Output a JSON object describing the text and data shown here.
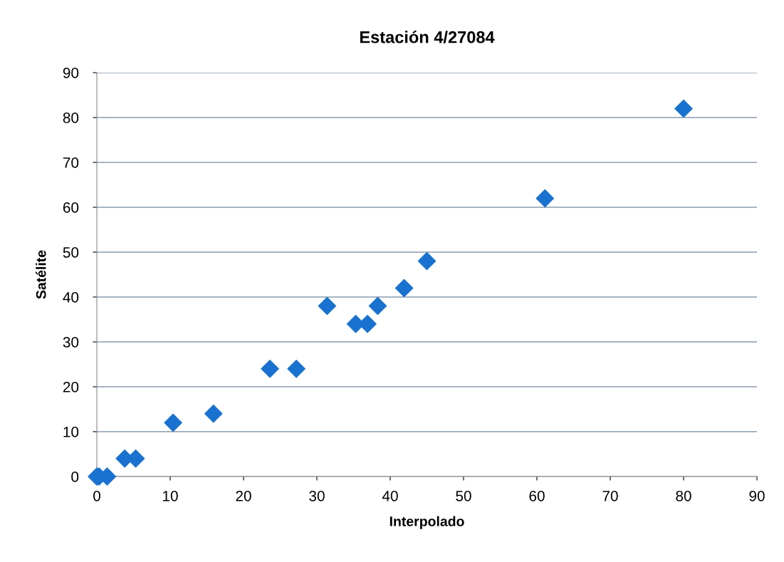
{
  "chart_data": {
    "type": "scatter",
    "title": "Estación 4/27084",
    "xlabel": "Interpolado",
    "ylabel": "Satélite",
    "x": [
      0,
      0.3,
      1.4,
      3.8,
      5.3,
      10.4,
      15.9,
      23.6,
      27.2,
      31.4,
      35.3,
      36.9,
      38.3,
      41.9,
      45.0,
      61.1,
      80.0
    ],
    "series": [
      {
        "color": "#1a72d0",
        "values": [
          0,
          0,
          0,
          4,
          4,
          12,
          14,
          24,
          24,
          38,
          34,
          34,
          38,
          42,
          48,
          62,
          82
        ]
      }
    ],
    "xlim": [
      0,
      90
    ],
    "ylim": [
      0,
      90
    ],
    "xticks": [
      0,
      10,
      20,
      30,
      40,
      50,
      60,
      70,
      80,
      90
    ],
    "yticks": [
      0,
      10,
      20,
      30,
      40,
      50,
      60,
      70,
      80,
      90
    ],
    "grid": "y",
    "marker": "diamond",
    "legend": false
  }
}
